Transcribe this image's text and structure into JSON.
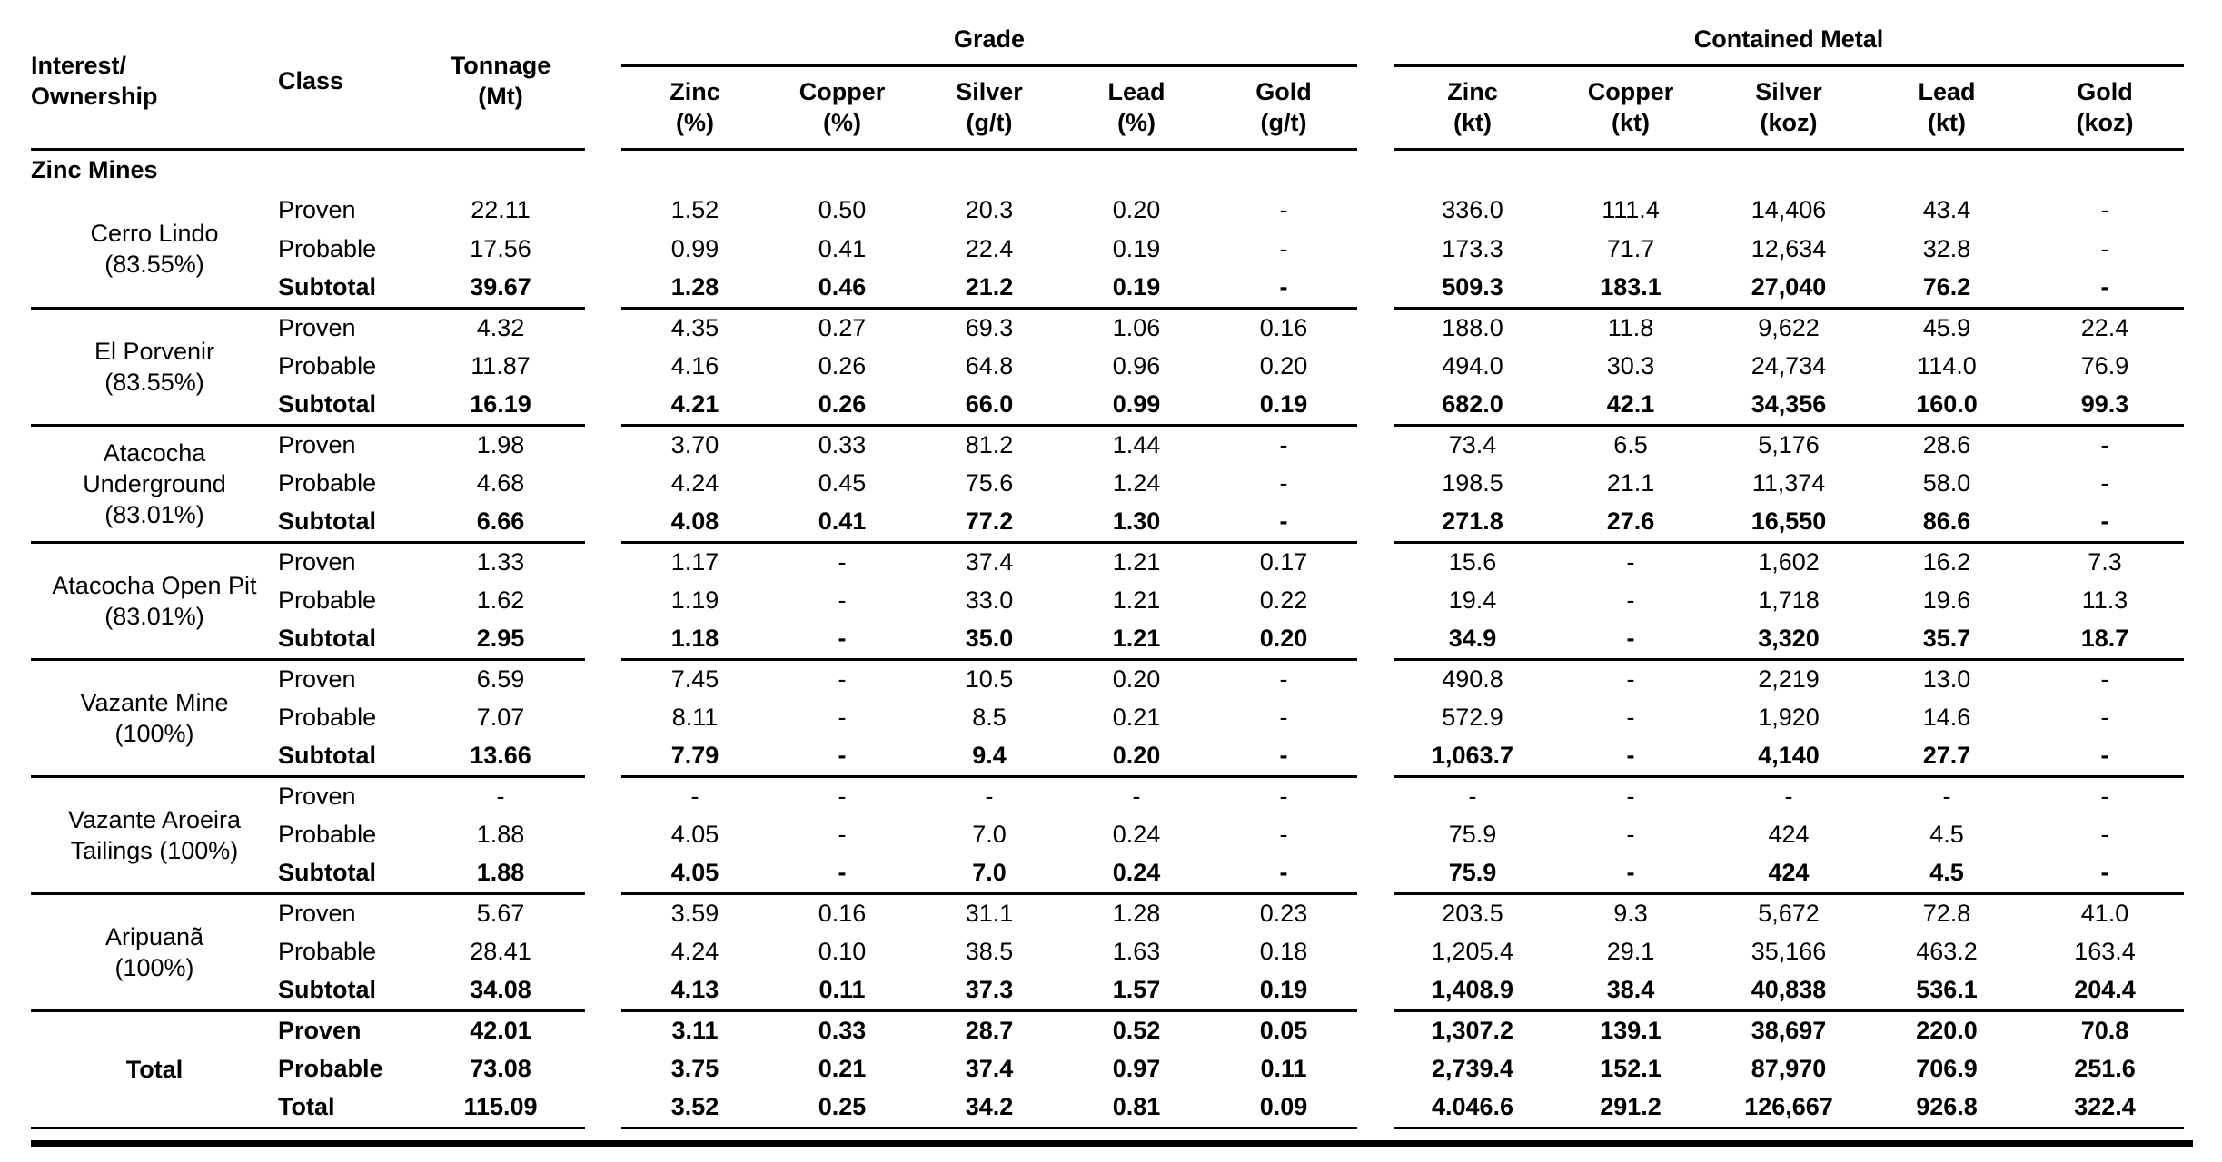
{
  "table": {
    "section_label": "Zinc Mines",
    "headers": {
      "interest": [
        "Interest/",
        "Ownership"
      ],
      "class_label": "Class",
      "tonnage": [
        "Tonnage",
        "(Mt)"
      ],
      "grade_group": "Grade",
      "metal_group": "Contained Metal",
      "grade_cols": [
        {
          "name": "Zinc",
          "unit": "(%)"
        },
        {
          "name": "Copper",
          "unit": "(%)"
        },
        {
          "name": "Silver",
          "unit": "(g/t)"
        },
        {
          "name": "Lead",
          "unit": "(%)"
        },
        {
          "name": "Gold",
          "unit": "(g/t)"
        }
      ],
      "metal_cols": [
        {
          "name": "Zinc",
          "unit": "(kt)"
        },
        {
          "name": "Copper",
          "unit": "(kt)"
        },
        {
          "name": "Silver",
          "unit": "(koz)"
        },
        {
          "name": "Lead",
          "unit": "(kt)"
        },
        {
          "name": "Gold",
          "unit": "(koz)"
        }
      ]
    },
    "groups": [
      {
        "name_lines": [
          "Cerro Lindo",
          "(83.55%)"
        ],
        "bold_name": false,
        "rows": [
          {
            "class_label": "Proven",
            "bold": false,
            "values": [
              "22.11",
              "1.52",
              "0.50",
              "20.3",
              "0.20",
              "-",
              "336.0",
              "111.4",
              "14,406",
              "43.4",
              "-"
            ]
          },
          {
            "class_label": "Probable",
            "bold": false,
            "values": [
              "17.56",
              "0.99",
              "0.41",
              "22.4",
              "0.19",
              "-",
              "173.3",
              "71.7",
              "12,634",
              "32.8",
              "-"
            ]
          },
          {
            "class_label": "Subtotal",
            "bold": true,
            "values": [
              "39.67",
              "1.28",
              "0.46",
              "21.2",
              "0.19",
              "-",
              "509.3",
              "183.1",
              "27,040",
              "76.2",
              "-"
            ]
          }
        ]
      },
      {
        "name_lines": [
          "El Porvenir",
          "(83.55%)"
        ],
        "bold_name": false,
        "rows": [
          {
            "class_label": "Proven",
            "bold": false,
            "values": [
              "4.32",
              "4.35",
              "0.27",
              "69.3",
              "1.06",
              "0.16",
              "188.0",
              "11.8",
              "9,622",
              "45.9",
              "22.4"
            ]
          },
          {
            "class_label": "Probable",
            "bold": false,
            "values": [
              "11.87",
              "4.16",
              "0.26",
              "64.8",
              "0.96",
              "0.20",
              "494.0",
              "30.3",
              "24,734",
              "114.0",
              "76.9"
            ]
          },
          {
            "class_label": "Subtotal",
            "bold": true,
            "values": [
              "16.19",
              "4.21",
              "0.26",
              "66.0",
              "0.99",
              "0.19",
              "682.0",
              "42.1",
              "34,356",
              "160.0",
              "99.3"
            ]
          }
        ]
      },
      {
        "name_lines": [
          "Atacocha",
          "Underground",
          "(83.01%)"
        ],
        "bold_name": false,
        "rows": [
          {
            "class_label": "Proven",
            "bold": false,
            "values": [
              "1.98",
              "3.70",
              "0.33",
              "81.2",
              "1.44",
              "-",
              "73.4",
              "6.5",
              "5,176",
              "28.6",
              "-"
            ]
          },
          {
            "class_label": "Probable",
            "bold": false,
            "values": [
              "4.68",
              "4.24",
              "0.45",
              "75.6",
              "1.24",
              "-",
              "198.5",
              "21.1",
              "11,374",
              "58.0",
              "-"
            ]
          },
          {
            "class_label": "Subtotal",
            "bold": true,
            "values": [
              "6.66",
              "4.08",
              "0.41",
              "77.2",
              "1.30",
              "-",
              "271.8",
              "27.6",
              "16,550",
              "86.6",
              "-"
            ]
          }
        ]
      },
      {
        "name_lines": [
          "Atacocha Open Pit",
          "(83.01%)"
        ],
        "bold_name": false,
        "rows": [
          {
            "class_label": "Proven",
            "bold": false,
            "values": [
              "1.33",
              "1.17",
              "-",
              "37.4",
              "1.21",
              "0.17",
              "15.6",
              "-",
              "1,602",
              "16.2",
              "7.3"
            ]
          },
          {
            "class_label": "Probable",
            "bold": false,
            "values": [
              "1.62",
              "1.19",
              "-",
              "33.0",
              "1.21",
              "0.22",
              "19.4",
              "-",
              "1,718",
              "19.6",
              "11.3"
            ]
          },
          {
            "class_label": "Subtotal",
            "bold": true,
            "values": [
              "2.95",
              "1.18",
              "-",
              "35.0",
              "1.21",
              "0.20",
              "34.9",
              "-",
              "3,320",
              "35.7",
              "18.7"
            ]
          }
        ]
      },
      {
        "name_lines": [
          "Vazante Mine",
          "(100%)"
        ],
        "bold_name": false,
        "rows": [
          {
            "class_label": "Proven",
            "bold": false,
            "values": [
              "6.59",
              "7.45",
              "-",
              "10.5",
              "0.20",
              "-",
              "490.8",
              "-",
              "2,219",
              "13.0",
              "-"
            ]
          },
          {
            "class_label": "Probable",
            "bold": false,
            "values": [
              "7.07",
              "8.11",
              "-",
              "8.5",
              "0.21",
              "-",
              "572.9",
              "-",
              "1,920",
              "14.6",
              "-"
            ]
          },
          {
            "class_label": "Subtotal",
            "bold": true,
            "values": [
              "13.66",
              "7.79",
              "-",
              "9.4",
              "0.20",
              "-",
              "1,063.7",
              "-",
              "4,140",
              "27.7",
              "-"
            ]
          }
        ]
      },
      {
        "name_lines": [
          "Vazante Aroeira",
          "Tailings (100%)"
        ],
        "bold_name": false,
        "rows": [
          {
            "class_label": "Proven",
            "bold": false,
            "values": [
              "-",
              "-",
              "-",
              "-",
              "-",
              "-",
              "-",
              "-",
              "-",
              "-",
              "-"
            ]
          },
          {
            "class_label": "Probable",
            "bold": false,
            "values": [
              "1.88",
              "4.05",
              "-",
              "7.0",
              "0.24",
              "-",
              "75.9",
              "-",
              "424",
              "4.5",
              "-"
            ]
          },
          {
            "class_label": "Subtotal",
            "bold": true,
            "values": [
              "1.88",
              "4.05",
              "-",
              "7.0",
              "0.24",
              "-",
              "75.9",
              "-",
              "424",
              "4.5",
              "-"
            ]
          }
        ]
      },
      {
        "name_lines": [
          "Aripuanã",
          "(100%)"
        ],
        "bold_name": false,
        "rows": [
          {
            "class_label": "Proven",
            "bold": false,
            "values": [
              "5.67",
              "3.59",
              "0.16",
              "31.1",
              "1.28",
              "0.23",
              "203.5",
              "9.3",
              "5,672",
              "72.8",
              "41.0"
            ]
          },
          {
            "class_label": "Probable",
            "bold": false,
            "values": [
              "28.41",
              "4.24",
              "0.10",
              "38.5",
              "1.63",
              "0.18",
              "1,205.4",
              "29.1",
              "35,166",
              "463.2",
              "163.4"
            ]
          },
          {
            "class_label": "Subtotal",
            "bold": true,
            "values": [
              "34.08",
              "4.13",
              "0.11",
              "37.3",
              "1.57",
              "0.19",
              "1,408.9",
              "38.4",
              "40,838",
              "536.1",
              "204.4"
            ]
          }
        ]
      },
      {
        "name_lines": [
          "Total"
        ],
        "bold_name": true,
        "rows": [
          {
            "class_label": "Proven",
            "bold": true,
            "values": [
              "42.01",
              "3.11",
              "0.33",
              "28.7",
              "0.52",
              "0.05",
              "1,307.2",
              "139.1",
              "38,697",
              "220.0",
              "70.8"
            ]
          },
          {
            "class_label": "Probable",
            "bold": true,
            "values": [
              "73.08",
              "3.75",
              "0.21",
              "37.4",
              "0.97",
              "0.11",
              "2,739.4",
              "152.1",
              "87,970",
              "706.9",
              "251.6"
            ]
          },
          {
            "class_label": "Total",
            "bold": true,
            "values": [
              "115.09",
              "3.52",
              "0.25",
              "34.2",
              "0.81",
              "0.09",
              "4.046.6",
              "291.2",
              "126,667",
              "926.8",
              "322.4"
            ]
          }
        ]
      }
    ]
  }
}
